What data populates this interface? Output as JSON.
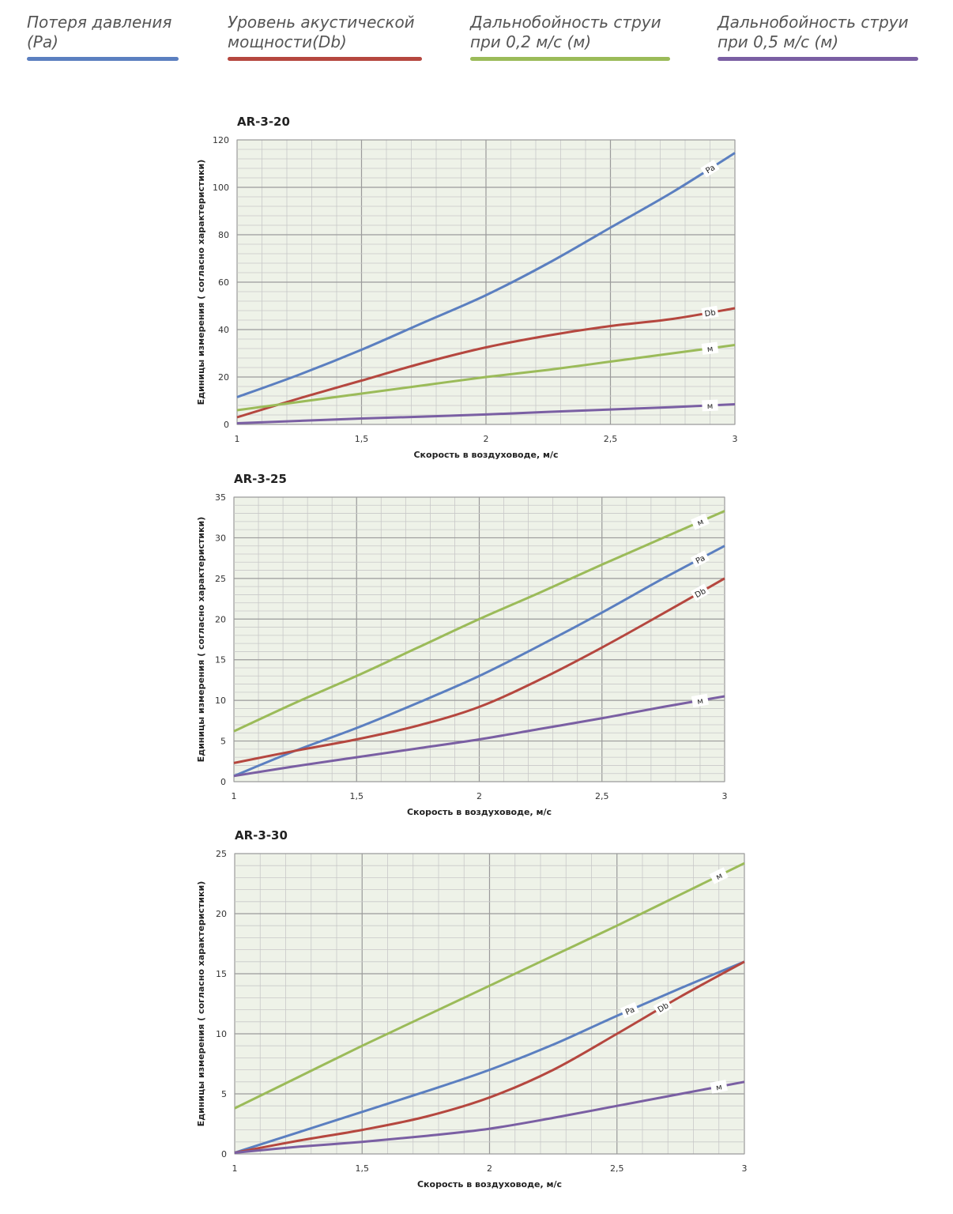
{
  "legend": [
    {
      "label": "Потеря давления (Pa)",
      "color": "#5b7fc0"
    },
    {
      "label": "Уровень акустической мощности(Db)",
      "color": "#b5473f"
    },
    {
      "label": "Дальнобойность струи при 0,2 м/с (м)",
      "color": "#9bbb59"
    },
    {
      "label": "Дальнобойность струи при 0,5 м/с (м)",
      "color": "#7a5fa3"
    }
  ],
  "chart_data": [
    {
      "type": "line",
      "title": "AR-3-20",
      "xlabel": "Скорость в воздуховоде, м/с",
      "ylabel": "Единицы измерения ( согласно характеристики)",
      "xlim": [
        1,
        3
      ],
      "ylim": [
        0,
        120
      ],
      "xticks": [
        "1",
        "1,5",
        "2",
        "2,5",
        "3"
      ],
      "yticks": [
        "0",
        "20",
        "40",
        "60",
        "80",
        "100",
        "120"
      ],
      "grid": true,
      "x": [
        1,
        1.25,
        1.5,
        1.75,
        2,
        2.25,
        2.5,
        2.75,
        3
      ],
      "series": [
        {
          "name": "Pa",
          "color": "#5b7fc0",
          "values": [
            11.5,
            21,
            31.5,
            43,
            54.5,
            68,
            83,
            98,
            114.5
          ]
        },
        {
          "name": "Db",
          "color": "#b5473f",
          "values": [
            3,
            11,
            18.5,
            26,
            32.5,
            37.5,
            41.5,
            44.5,
            49
          ]
        },
        {
          "name": "м",
          "color": "#9bbb59",
          "values": [
            6,
            9.5,
            13,
            16.5,
            20,
            23,
            26.5,
            30,
            33.5
          ]
        },
        {
          "name": "м",
          "color": "#7a5fa3",
          "values": [
            0.5,
            1.5,
            2.5,
            3.3,
            4.2,
            5.3,
            6.3,
            7.3,
            8.5
          ]
        }
      ]
    },
    {
      "type": "line",
      "title": "AR-3-25",
      "xlabel": "Скорость в воздуховоде, м/с",
      "ylabel": "Единицы измерения ( согласно характеристики)",
      "xlim": [
        1,
        3
      ],
      "ylim": [
        0,
        35
      ],
      "xticks": [
        "1",
        "1,5",
        "2",
        "2,5",
        "3"
      ],
      "yticks": [
        "0",
        "5",
        "10",
        "15",
        "20",
        "25",
        "30",
        "35"
      ],
      "grid": true,
      "x": [
        1,
        1.25,
        1.5,
        1.75,
        2,
        2.25,
        2.5,
        2.75,
        3
      ],
      "series": [
        {
          "name": "м",
          "color": "#9bbb59",
          "values": [
            6.2,
            9.7,
            13,
            16.5,
            20,
            23.3,
            26.7,
            30,
            33.3
          ]
        },
        {
          "name": "Pa",
          "color": "#5b7fc0",
          "values": [
            0.7,
            3.8,
            6.6,
            9.7,
            13,
            16.8,
            20.8,
            25,
            29
          ]
        },
        {
          "name": "Db",
          "color": "#b5473f",
          "values": [
            2.3,
            3.8,
            5.2,
            6.9,
            9.2,
            12.6,
            16.5,
            20.7,
            25
          ]
        },
        {
          "name": "м",
          "color": "#7a5fa3",
          "values": [
            0.7,
            1.9,
            3,
            4.1,
            5.2,
            6.5,
            7.8,
            9.2,
            10.5
          ]
        }
      ]
    },
    {
      "type": "line",
      "title": "AR-3-30",
      "xlabel": "Скорость в воздуховоде, м/с",
      "ylabel": "Единицы измерения ( согласно характеристики)",
      "xlim": [
        1,
        3
      ],
      "ylim": [
        0,
        25
      ],
      "xticks": [
        "1",
        "1,5",
        "2",
        "2,5",
        "3"
      ],
      "yticks": [
        "0",
        "5",
        "10",
        "15",
        "20",
        "25"
      ],
      "grid": true,
      "x": [
        1,
        1.25,
        1.5,
        1.75,
        2,
        2.25,
        2.5,
        2.75,
        3
      ],
      "series": [
        {
          "name": "м",
          "color": "#9bbb59",
          "values": [
            3.8,
            6.4,
            9,
            11.5,
            14,
            16.5,
            19,
            21.6,
            24.2
          ]
        },
        {
          "name": "Pa",
          "color": "#5b7fc0",
          "values": [
            0.1,
            1.8,
            3.5,
            5.2,
            7,
            9.1,
            11.5,
            13.8,
            16
          ]
        },
        {
          "name": "Db",
          "color": "#b5473f",
          "values": [
            0.1,
            1.1,
            2,
            3.1,
            4.7,
            7,
            10,
            13.1,
            16
          ]
        },
        {
          "name": "м",
          "color": "#7a5fa3",
          "values": [
            0.1,
            0.6,
            1,
            1.5,
            2.1,
            3,
            4,
            5,
            6
          ]
        }
      ]
    }
  ]
}
